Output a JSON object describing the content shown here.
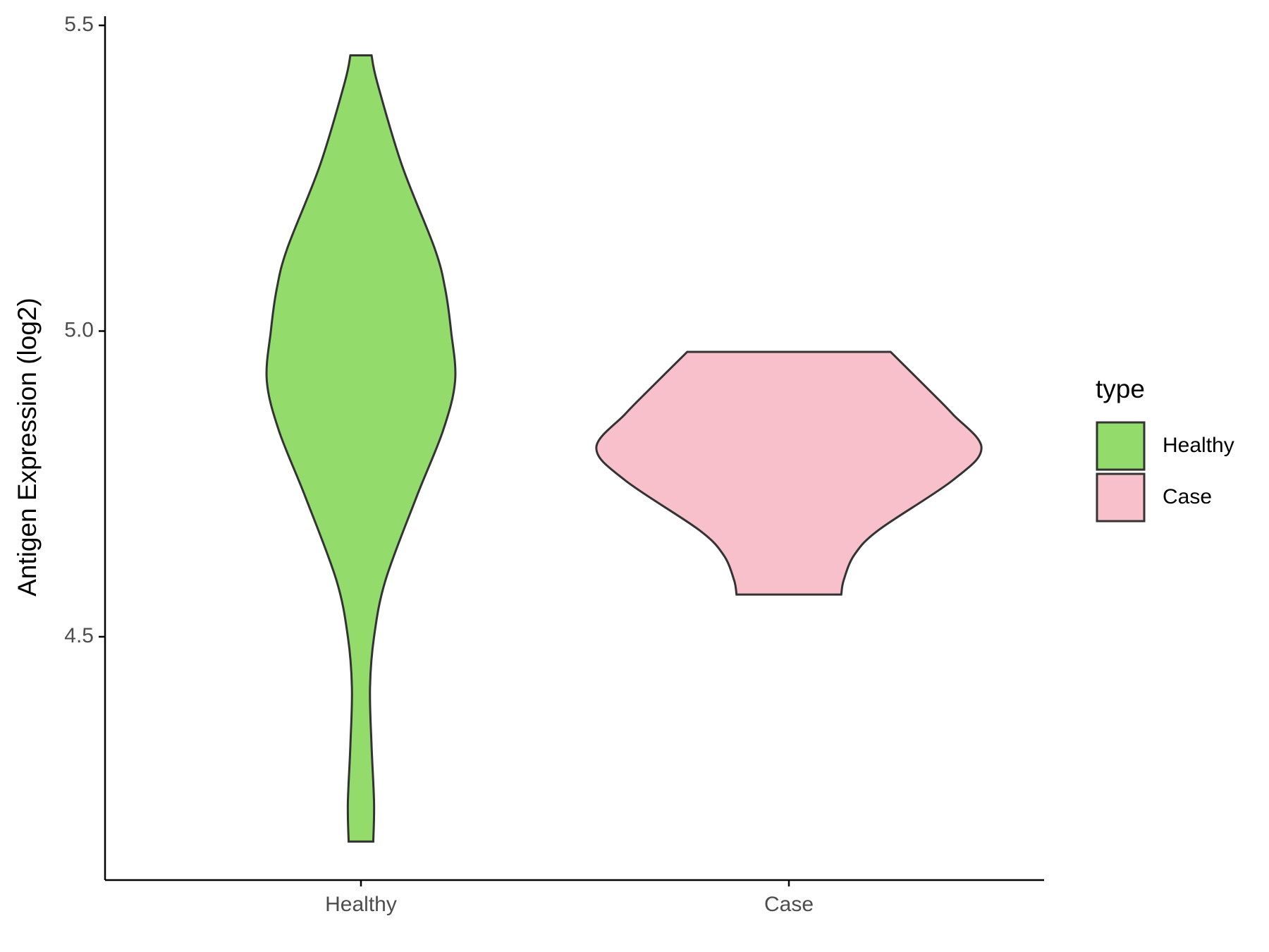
{
  "chart_data": {
    "type": "violin",
    "y_label": "Antigen Expression (log2)",
    "categories": [
      "Healthy",
      "Case"
    ],
    "legend_title": "type",
    "legend_position": "right",
    "series": [
      {
        "name": "Healthy",
        "color": "#93dc6b",
        "y": [
          5.451,
          5.406,
          5.271,
          5.135,
          5.068,
          5.0,
          4.919,
          4.837,
          4.729,
          4.593,
          4.5,
          4.417,
          4.322,
          4.228,
          4.165
        ],
        "density": [
          0.055,
          0.085,
          0.213,
          0.383,
          0.438,
          0.468,
          0.489,
          0.426,
          0.289,
          0.128,
          0.068,
          0.047,
          0.055,
          0.068,
          0.064
        ]
      },
      {
        "name": "Case",
        "color": "#f7c0cb",
        "y": [
          4.966,
          4.905,
          4.864,
          4.809,
          4.756,
          4.675,
          4.634,
          4.593,
          4.569
        ],
        "density": [
          0.528,
          0.723,
          0.851,
          1,
          0.851,
          0.468,
          0.34,
          0.285,
          0.272
        ]
      }
    ],
    "ylim": [
      4.102,
      5.515
    ],
    "yticks": [
      4.5,
      {
        "value": 5,
        "label": "5.0"
      },
      5.5
    ]
  }
}
